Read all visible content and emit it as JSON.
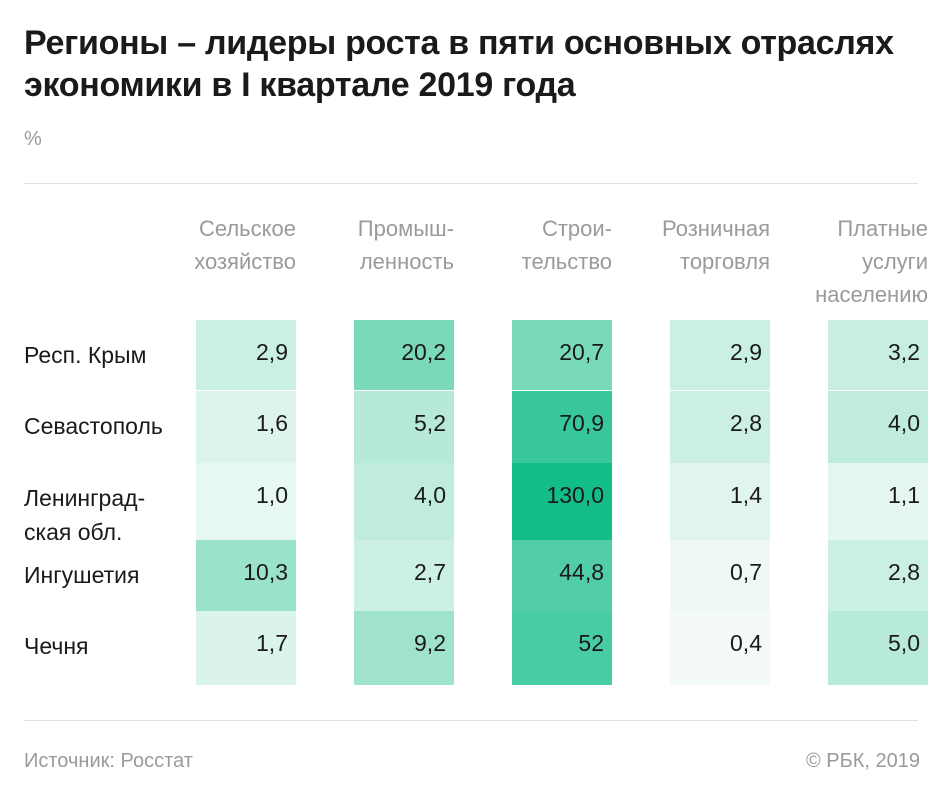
{
  "header": {
    "title": "Регионы – лидеры роста в пяти основных отраслях экономики в I квартале 2019 года",
    "unit": "%"
  },
  "footer": {
    "source": "Источник: Росстат",
    "copyright": "© РБК, 2019"
  },
  "colors": {
    "accent": "#12bd88",
    "text": "#1a1a1a",
    "muted": "#9a9a9a",
    "cell_min": "#f3faf7"
  },
  "chart_data": {
    "type": "heatmap",
    "title": "Регионы – лидеры роста в пяти основных отраслях экономики в I квартале 2019 года",
    "unit": "%",
    "columns": [
      "Сельское хозяйство",
      "Промыш-ленность",
      "Строи-тельство",
      "Розничная торговля",
      "Платные услуги населению"
    ],
    "column_lines": [
      [
        "Сельское",
        "хозяйство"
      ],
      [
        "Промыш-",
        "ленность"
      ],
      [
        "Строи-",
        "тельство"
      ],
      [
        "Розничная",
        "торговля"
      ],
      [
        "Платные",
        "услуги",
        "населению"
      ]
    ],
    "rows": [
      "Респ. Крым",
      "Севастополь",
      "Ленинград-ская обл.",
      "Ингушетия",
      "Чечня"
    ],
    "row_lines": [
      [
        "Респ. Крым"
      ],
      [
        "Севастополь"
      ],
      [
        "Ленинград-",
        "ская обл."
      ],
      [
        "Ингушетия"
      ],
      [
        "Чечня"
      ]
    ],
    "values": [
      [
        2.9,
        20.2,
        20.7,
        2.9,
        3.2
      ],
      [
        1.6,
        5.2,
        70.9,
        2.8,
        4.0
      ],
      [
        1.0,
        4.0,
        130.0,
        1.4,
        1.1
      ],
      [
        10.3,
        2.7,
        44.8,
        0.7,
        2.8
      ],
      [
        1.7,
        9.2,
        52,
        0.4,
        5.0
      ]
    ],
    "labels": [
      [
        "2,9",
        "20,2",
        "20,7",
        "2,9",
        "3,2"
      ],
      [
        "1,6",
        "5,2",
        "70,9",
        "2,8",
        "4,0"
      ],
      [
        "1,0",
        "4,0",
        "130,0",
        "1,4",
        "1,1"
      ],
      [
        "10,3",
        "2,7",
        "44,8",
        "0,7",
        "2,8"
      ],
      [
        "1,7",
        "9,2",
        "52",
        "0,4",
        "5,0"
      ]
    ],
    "color_scale": {
      "domain": [
        0.4,
        130.0
      ],
      "low": "#f3faf7",
      "high": "#12bd88",
      "scale": "log"
    }
  }
}
